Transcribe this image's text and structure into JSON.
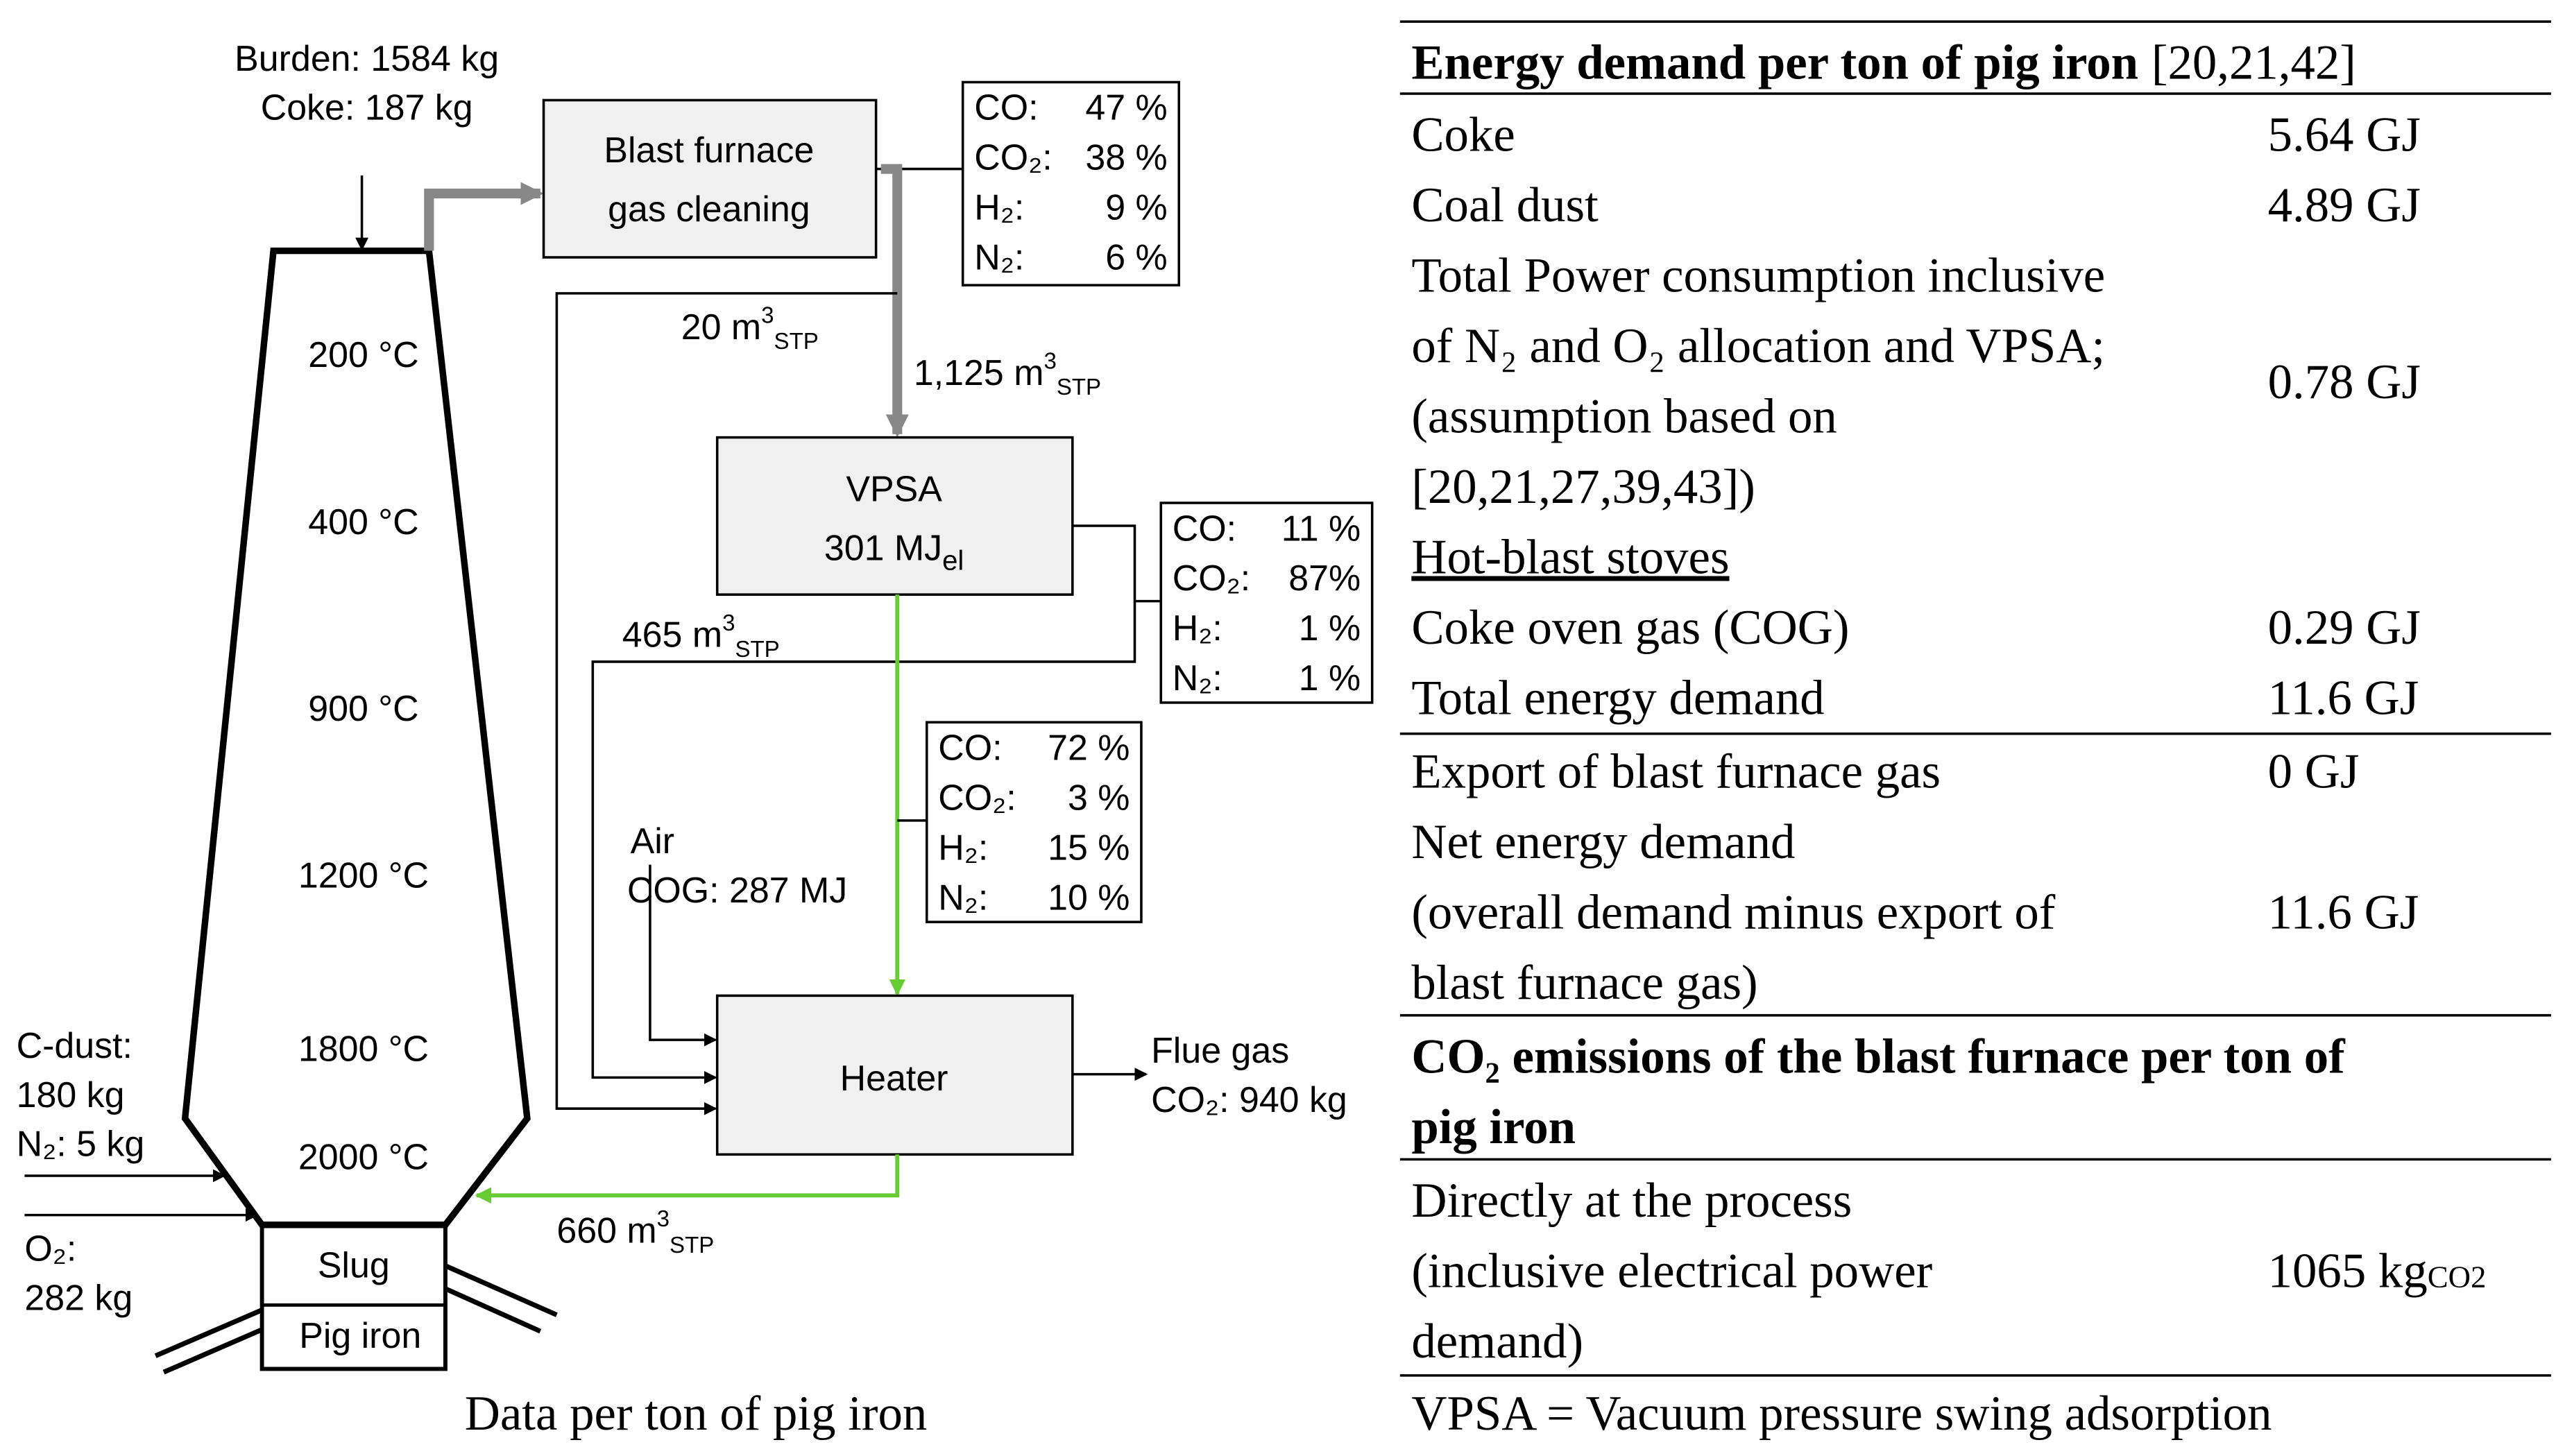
{
  "diagram": {
    "burden": "Burden: 1584 kg",
    "coke": "Coke: 187 kg",
    "temperatures": [
      "200 °C",
      "400 °C",
      "900 °C",
      "1200 °C",
      "1800 °C",
      "2000 °C"
    ],
    "slug": "Slug",
    "pig_iron": "Pig iron",
    "cdust": [
      "C-dust:",
      "180 kg",
      "N₂: 5 kg"
    ],
    "o2": [
      "O₂:",
      "282 kg"
    ],
    "cleaning": [
      "Blast furnace",
      "gas cleaning"
    ],
    "vpsa": {
      "name": "VPSA",
      "energy": "301 MJ",
      "sub": "el"
    },
    "heater": "Heater",
    "compositions": [
      [
        [
          "CO:",
          "47 %"
        ],
        [
          "CO₂:",
          "38 %"
        ],
        [
          "H₂:",
          "9 %"
        ],
        [
          "N₂:",
          "6 %"
        ]
      ],
      [
        [
          "CO:",
          "11 %"
        ],
        [
          "CO₂:",
          "87%"
        ],
        [
          "H₂:",
          "1 %"
        ],
        [
          "N₂:",
          "1 %"
        ]
      ],
      [
        [
          "CO:",
          "72 %"
        ],
        [
          "CO₂:",
          "3 %"
        ],
        [
          "H₂:",
          "15 %"
        ],
        [
          "N₂:",
          "10 %"
        ]
      ]
    ],
    "flows": [
      {
        "amount": "20 m",
        "sup": "3",
        "sub": "STP"
      },
      {
        "amount": "1,125 m",
        "sup": "3",
        "sub": "STP"
      },
      {
        "amount": "465 m",
        "sup": "3",
        "sub": "STP"
      },
      {
        "amount": "660 m",
        "sup": "3",
        "sub": "STP"
      }
    ],
    "air": "Air",
    "cog": "COG: 287 MJ",
    "flue": [
      "Flue gas",
      "CO₂: 940 kg"
    ],
    "caption": "Data per ton of pig iron"
  },
  "table": {
    "title": "Energy demand per ton of pig iron",
    "ref": "[20,21,42]",
    "rows": [
      {
        "lines": [
          "Coke"
        ],
        "value": "5.64 GJ"
      },
      {
        "lines": [
          "Coal dust"
        ],
        "value": "4.89 GJ"
      },
      {
        "lines": [
          "Total Power consumption inclusive",
          "of N₂ and O₂ allocation and VPSA;",
          "(assumption based on",
          "[20,21,27,39,43])"
        ],
        "value": "0.78 GJ"
      },
      {
        "lines": [
          "Hot-blast stoves"
        ]
      },
      {
        "lines": [
          "Coke oven gas (COG)"
        ],
        "value": "0.29 GJ"
      },
      {
        "lines": [
          "Total energy demand"
        ],
        "value": "11.6 GJ"
      },
      {
        "lines": [
          "Export of blast furnace gas"
        ],
        "value": "0 GJ"
      },
      {
        "lines": [
          "Net energy demand",
          "(overall demand minus export of",
          "blast furnace gas)"
        ],
        "value": "11.6 GJ"
      },
      {
        "lines": [
          "CO₂ emissions of the blast furnace per ton of",
          "pig iron"
        ]
      },
      {
        "lines": [
          "Directly at the process",
          "(inclusive electrical power",
          "demand)"
        ],
        "value": "1065 kg",
        "value_sub": "CO2"
      }
    ],
    "footnote": "VPSA = Vacuum pressure swing adsorption"
  }
}
